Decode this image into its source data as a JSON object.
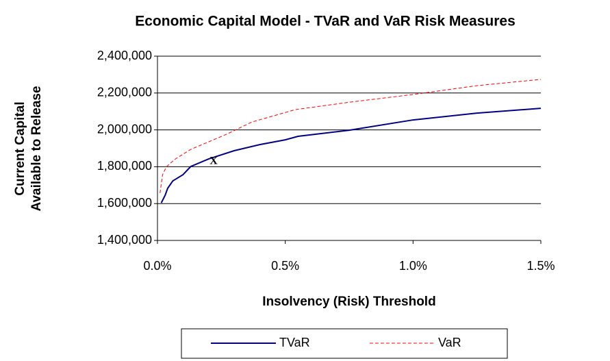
{
  "chart_data": {
    "type": "line",
    "title": "Economic Capital Model - TVaR and VaR Risk Measures",
    "xlabel": "Insolvency (Risk) Threshold",
    "ylabel": [
      "Current Capital",
      "Available to Release"
    ],
    "annotation": "X",
    "xlim": [
      0,
      1.5
    ],
    "xticks": [
      {
        "value": 0,
        "label": "0.0%"
      },
      {
        "value": 0.5,
        "label": "0.5%"
      },
      {
        "value": 1,
        "label": "1.0%"
      },
      {
        "value": 1.5,
        "label": "1.5%"
      }
    ],
    "ylim": [
      1400000,
      2400000
    ],
    "yticks": [
      {
        "value": 1400000,
        "label": "1,400,000"
      },
      {
        "value": 1600000,
        "label": "1,600,000"
      },
      {
        "value": 1800000,
        "label": "1,800,000"
      },
      {
        "value": 2000000,
        "label": "2,000,000"
      },
      {
        "value": 2200000,
        "label": "2,200,000"
      },
      {
        "value": 2400000,
        "label": "2,400,000"
      }
    ],
    "grid": true,
    "legend": "bottom",
    "series": [
      {
        "name": "TVaR",
        "color": "#000080",
        "dash": false,
        "x": [
          0.015,
          0.03,
          0.04,
          0.06,
          0.1,
          0.13,
          0.2,
          0.3,
          0.4,
          0.5,
          0.55,
          0.75,
          1.0,
          1.25,
          1.5
        ],
        "values": [
          1604000,
          1645000,
          1683000,
          1723000,
          1757000,
          1801000,
          1842000,
          1887000,
          1920000,
          1946000,
          1965000,
          1998000,
          2054000,
          2091000,
          2117000
        ]
      },
      {
        "name": "VaR",
        "color": "#ff0000",
        "dash": true,
        "x": [
          0.01,
          0.02,
          0.035,
          0.07,
          0.13,
          0.27,
          0.37,
          0.54,
          0.75,
          1.0,
          1.25,
          1.5
        ],
        "values": [
          1657000,
          1757000,
          1800000,
          1842000,
          1894000,
          1976000,
          2043000,
          2110000,
          2150000,
          2192000,
          2240000,
          2274000
        ]
      }
    ]
  }
}
